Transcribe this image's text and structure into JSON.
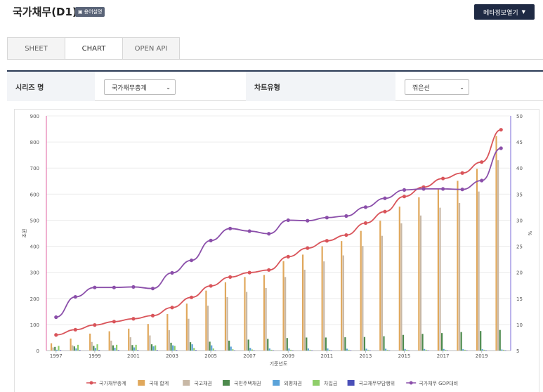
{
  "header": {
    "title": "국가채무(D1)",
    "term_badge_icon": "book-icon",
    "term_badge": "용어설명",
    "meta_button": "메타정보열기"
  },
  "tabs": [
    {
      "label": "SHEET",
      "active": false
    },
    {
      "label": "CHART",
      "active": true
    },
    {
      "label": "OPEN API",
      "active": false
    }
  ],
  "filters": {
    "series_label": "시리즈 명",
    "series_value": "국가채무총계",
    "chart_type_label": "차트유형",
    "chart_type_value": "꺾은선"
  },
  "colors": {
    "header_button": "#1f2a44",
    "filter_border": "#2b3a55"
  },
  "chart_data": {
    "type": "bar",
    "xlabel": "기준년도",
    "ylabel_left": "조원",
    "ylabel_right": "%",
    "ylim_left": [
      0,
      900
    ],
    "ylim_right": [
      5,
      50
    ],
    "yticks_left": [
      "0",
      "100",
      "200",
      "300",
      "400",
      "500",
      "600",
      "700",
      "800",
      "900"
    ],
    "yticks_right": [
      "5",
      "10",
      "15",
      "20",
      "25",
      "30",
      "35",
      "40",
      "45",
      "50"
    ],
    "x_tick_labels": [
      "1997",
      "1999",
      "2001",
      "2003",
      "2005",
      "2007",
      "2009",
      "2011",
      "2013",
      "2015",
      "2017",
      "2019"
    ],
    "years": [
      1997,
      1998,
      1999,
      2000,
      2001,
      2002,
      2003,
      2004,
      2005,
      2006,
      2007,
      2008,
      2009,
      2010,
      2011,
      2012,
      2013,
      2014,
      2015,
      2016,
      2017,
      2018,
      2019,
      2020
    ],
    "legend_position": "bottom",
    "series": [
      {
        "name": "국가채무총계",
        "kind": "line",
        "axis": "left",
        "color": "#d9545a",
        "values": [
          60,
          80,
          98,
          111,
          122,
          134,
          165,
          204,
          248,
          282,
          299,
          309,
          360,
          393,
          421,
          443,
          489,
          533,
          591,
          627,
          660,
          681,
          723,
          847
        ]
      },
      {
        "name": "국채 합계",
        "kind": "bar",
        "axis": "left",
        "color": "#e0a85c",
        "values": [
          28,
          46,
          65,
          74,
          84,
          102,
          140,
          180,
          230,
          262,
          282,
          290,
          343,
          368,
          400,
          420,
          459,
          498,
          552,
          588,
          620,
          651,
          697,
          823
        ]
      },
      {
        "name": "국고채권",
        "kind": "bar",
        "axis": "left",
        "color": "#c8b8a6",
        "values": [
          12,
          20,
          33,
          38,
          51,
          58,
          78,
          122,
          172,
          205,
          225,
          240,
          282,
          310,
          342,
          365,
          401,
          440,
          488,
          518,
          548,
          566,
          610,
          730
        ]
      },
      {
        "name": "국민주택채권",
        "kind": "bar",
        "axis": "left",
        "color": "#4d8a4d",
        "values": [
          14,
          16,
          18,
          20,
          21,
          24,
          30,
          32,
          34,
          38,
          42,
          45,
          48,
          50,
          50,
          51,
          52,
          55,
          60,
          64,
          67,
          71,
          75,
          79
        ]
      },
      {
        "name": "외평채권",
        "kind": "bar",
        "axis": "left",
        "color": "#5ba3d9",
        "values": [
          3,
          8,
          10,
          11,
          12,
          16,
          20,
          24,
          20,
          15,
          10,
          8,
          8,
          8,
          8,
          7,
          7,
          7,
          6,
          6,
          6,
          5,
          5,
          4
        ]
      },
      {
        "name": "차입금",
        "kind": "bar",
        "axis": "left",
        "color": "#8fce6a",
        "values": [
          18,
          22,
          24,
          22,
          22,
          20,
          18,
          10,
          8,
          5,
          4,
          3,
          3,
          3,
          3,
          3,
          3,
          3,
          3,
          3,
          3,
          3,
          3,
          3
        ]
      },
      {
        "name": "국고채무부담행위",
        "kind": "bar",
        "axis": "left",
        "color": "#4a4fb8",
        "values": [
          2,
          2,
          2,
          2,
          2,
          2,
          2,
          2,
          1,
          1,
          1,
          1,
          1,
          1,
          1,
          1,
          1,
          1,
          1,
          1,
          1,
          1,
          1,
          1
        ]
      },
      {
        "name": "국가채무 GDP대비",
        "kind": "line",
        "axis": "right",
        "color": "#8b4faa",
        "values": [
          11.4,
          15.3,
          17.1,
          17.1,
          17.2,
          16.9,
          19.9,
          22.3,
          26.1,
          28.4,
          27.9,
          27.4,
          30.0,
          29.9,
          30.5,
          30.8,
          32.5,
          34.2,
          35.8,
          36.0,
          36.0,
          35.9,
          37.6,
          43.8
        ]
      }
    ]
  }
}
